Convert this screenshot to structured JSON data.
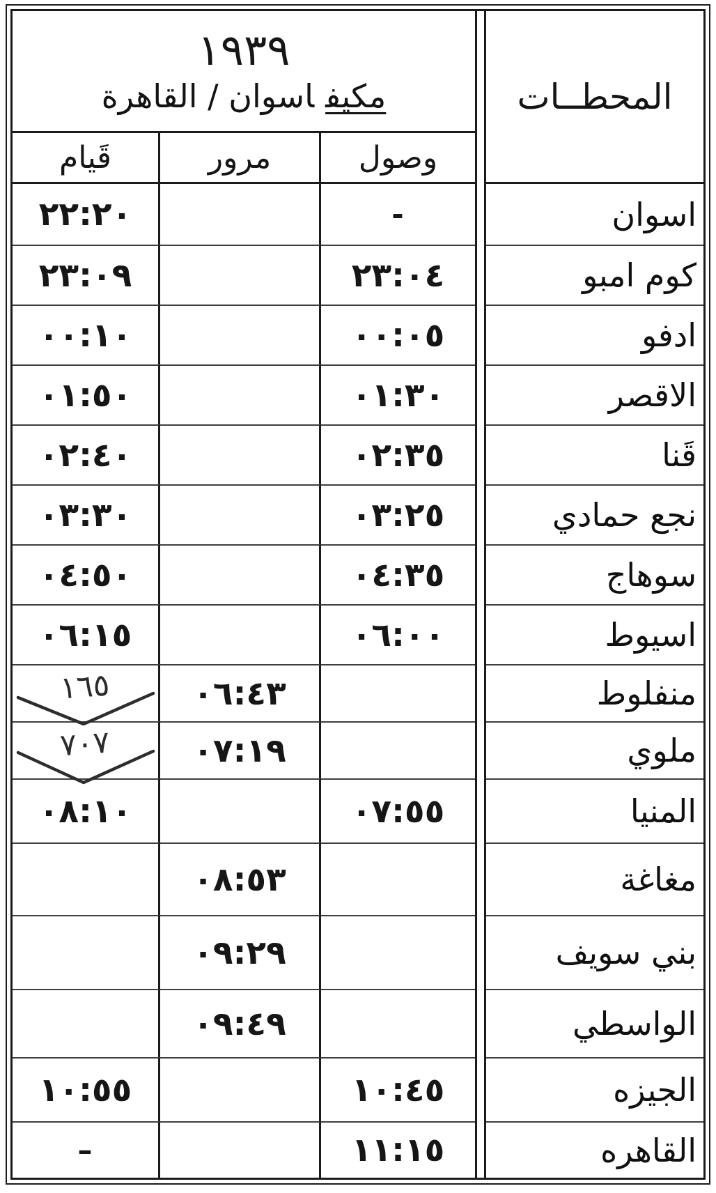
{
  "header": {
    "train_number": "١٩٣٩",
    "service_type": "مكيف",
    "route": "اسوان / القاهرة",
    "stations_label": "المحطــات",
    "columns": {
      "departure": "قَيام",
      "passing": "مرور",
      "arrival": "وصول"
    }
  },
  "rows": [
    {
      "station": "اسوان",
      "departure": "٢٢:٢٠",
      "passing": "",
      "arrival": "-"
    },
    {
      "station": "كوم امبو",
      "departure": "٢٣:٠٩",
      "passing": "",
      "arrival": "٢٣:٠٤"
    },
    {
      "station": "ادفو",
      "departure": "٠٠:١٠",
      "passing": "",
      "arrival": "٠٠:٠٥"
    },
    {
      "station": "الاقصر",
      "departure": "٠١:٥٠",
      "passing": "",
      "arrival": "٠١:٣٠"
    },
    {
      "station": "قَنا",
      "departure": "٠٢:٤٠",
      "passing": "",
      "arrival": "٠٢:٣٥"
    },
    {
      "station": "نجع حمادي",
      "departure": "٠٣:٣٠",
      "passing": "",
      "arrival": "٠٣:٢٥"
    },
    {
      "station": "سوهاج",
      "departure": "٠٤:٥٠",
      "passing": "",
      "arrival": "٠٤:٣٥"
    },
    {
      "station": "اسيوط",
      "departure": "٠٦:١٥",
      "passing": "",
      "arrival": "٠٦:٠٠"
    },
    {
      "station": "منفلوط",
      "departure": "",
      "annotation": "١٦٥",
      "passing": "٠٦:٤٣",
      "arrival": ""
    },
    {
      "station": "ملوي",
      "departure": "",
      "annotation": "٧٠٧",
      "passing": "٠٧:١٩",
      "arrival": ""
    },
    {
      "station": "المنيا",
      "departure": "٠٨:١٠",
      "passing": "",
      "arrival": "٠٧:٥٥"
    },
    {
      "station": "مغاغة",
      "departure": "",
      "passing": "٠٨:٥٣",
      "arrival": ""
    },
    {
      "station": "بني سويف",
      "departure": "",
      "passing": "٠٩:٢٩",
      "arrival": ""
    },
    {
      "station": "الواسطي",
      "departure": "",
      "passing": "٠٩:٤٩",
      "arrival": ""
    },
    {
      "station": "الجيزه",
      "departure": "١٠:٥٥",
      "passing": "",
      "arrival": "١٠:٤٥"
    },
    {
      "station": "القاهره",
      "departure": "–",
      "passing": "",
      "arrival": "١١:١٥"
    }
  ]
}
